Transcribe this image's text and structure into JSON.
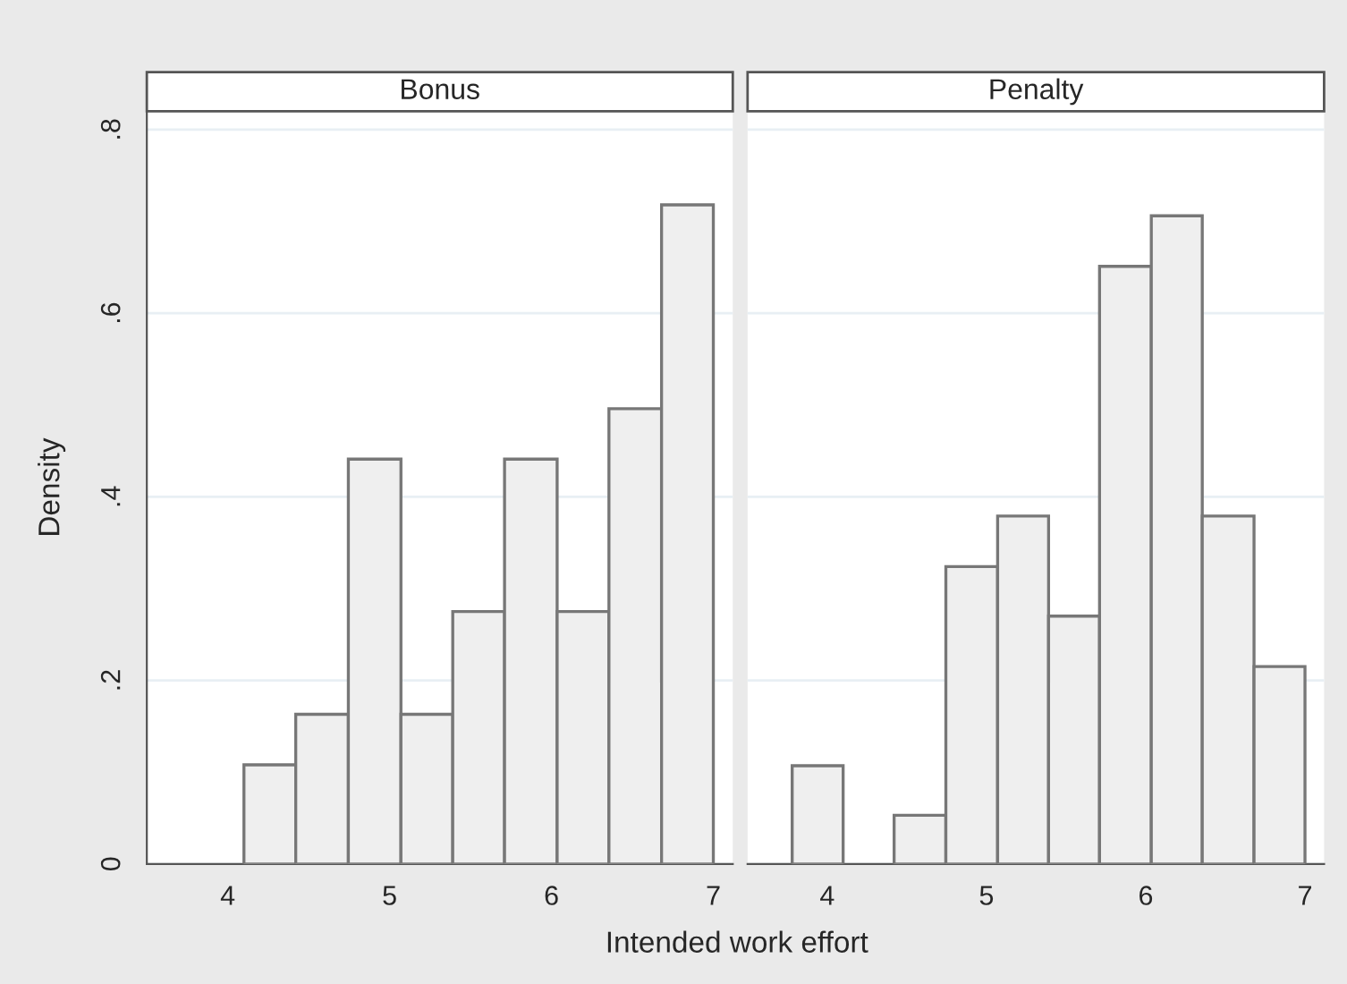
{
  "chart_data": [
    {
      "type": "histogram",
      "title": "Bonus",
      "xlabel": "Intended work effort",
      "ylabel": "Density",
      "color": "#efefef",
      "bins": [
        4.1,
        4.42,
        4.745,
        5.07,
        5.39,
        5.71,
        6.035,
        6.355,
        6.68,
        7.0
      ],
      "values": [
        0.108,
        0.163,
        0.441,
        0.163,
        0.275,
        0.441,
        0.275,
        0.496,
        0.718
      ],
      "xlim": [
        3.5,
        7.12
      ],
      "xticks": [
        4,
        5,
        6,
        7
      ],
      "ylim": [
        0,
        0.82
      ],
      "yticks": [
        {
          "value": 0,
          "label": "0"
        },
        {
          "value": 0.2,
          "label": ".2"
        },
        {
          "value": 0.4,
          "label": ".4"
        },
        {
          "value": 0.6,
          "label": ".6"
        },
        {
          "value": 0.8,
          "label": ".8"
        }
      ],
      "grid": "y"
    },
    {
      "type": "histogram",
      "title": "Penalty",
      "color": "#efefef",
      "bins": [
        3.78,
        4.1,
        4.42,
        4.745,
        5.07,
        5.39,
        5.71,
        6.035,
        6.355,
        6.68,
        7.0
      ],
      "values": [
        0.107,
        0,
        0.053,
        0.324,
        0.379,
        0.27,
        0.651,
        0.706,
        0.379,
        0.215
      ],
      "xlim": [
        3.5,
        7.12
      ],
      "xticks": [
        4,
        5,
        6,
        7
      ],
      "ylim": [
        0,
        0.82
      ],
      "yticks": [
        0,
        0.2,
        0.4,
        0.6,
        0.8
      ],
      "grid": "y",
      "tick_labels": "x"
    }
  ]
}
